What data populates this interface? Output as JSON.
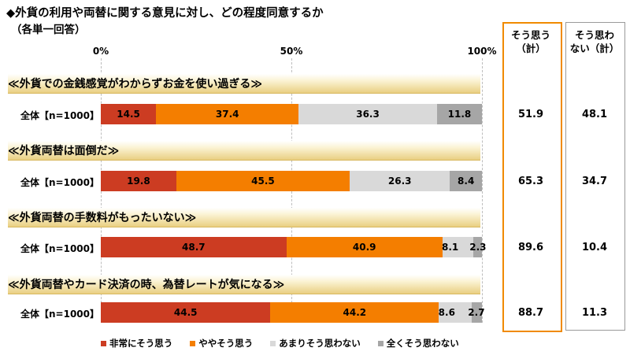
{
  "header": {
    "title": "◆外貨の利用や両替に関する意見に対し、どの程度同意するか",
    "subtitle": "（各単一回答）"
  },
  "chart_data": {
    "type": "bar",
    "orientation": "horizontal-stacked-100",
    "xlim": [
      0,
      100
    ],
    "ticks": [
      "0%",
      "50%",
      "100%"
    ],
    "tick_values": [
      0,
      50,
      100
    ],
    "legend_position": "bottom",
    "series": [
      {
        "name": "非常にそう思う",
        "color": "#cc3c22"
      },
      {
        "name": "ややそう思う",
        "color": "#f47e00"
      },
      {
        "name": "あまりそう思わない",
        "color": "#d9d9d9"
      },
      {
        "name": "全くそう思わない",
        "color": "#a6a6a6"
      }
    ],
    "summary_headers": [
      {
        "line1": "そう思う",
        "line2": "（計）"
      },
      {
        "line1": "そう思わ",
        "line2": "ない（計）"
      }
    ],
    "questions": [
      {
        "title": "≪外貨での金銭感覚がわからずお金を使い過ぎる≫",
        "row_label": "全体【n=1000】",
        "values": [
          14.5,
          37.4,
          36.3,
          11.8
        ],
        "agree_total": 51.9,
        "disagree_total": 48.1
      },
      {
        "title": "≪外貨両替は面倒だ≫",
        "row_label": "全体【n=1000】",
        "values": [
          19.8,
          45.5,
          26.3,
          8.4
        ],
        "agree_total": 65.3,
        "disagree_total": 34.7
      },
      {
        "title": "≪外貨両替の手数料がもったいない≫",
        "row_label": "全体【n=1000】",
        "values": [
          48.7,
          40.9,
          8.1,
          2.3
        ],
        "agree_total": 89.6,
        "disagree_total": 10.4
      },
      {
        "title": "≪外貨両替やカード決済の時、為替レートが気になる≫",
        "row_label": "全体【n=1000】",
        "values": [
          44.5,
          44.2,
          8.6,
          2.7
        ],
        "agree_total": 88.7,
        "disagree_total": 11.3
      }
    ]
  }
}
